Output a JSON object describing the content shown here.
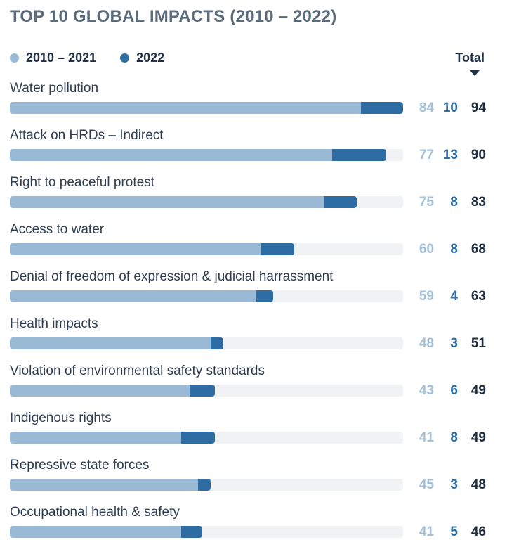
{
  "header": {
    "title": "TOP 10 GLOBAL IMPACTS (2010 – 2022)"
  },
  "legend": {
    "items": [
      {
        "label": "2010 – 2021",
        "color": "#9ab9d4"
      },
      {
        "label": "2022",
        "color": "#2e6da4"
      }
    ]
  },
  "total_header": {
    "label": "Total",
    "sort_direction": "descending"
  },
  "colors": {
    "bar_2010_2021": "#9ab9d4",
    "bar_2022": "#2e6da4",
    "track": "#f0f2f4",
    "title_text": "#5b6b7c",
    "label_text": "#2f3e51",
    "value_2010_2021_text": "#a3c0d9",
    "value_2022_text": "#2e6da4",
    "total_text": "#1e2c3e"
  },
  "chart_data": {
    "type": "bar",
    "orientation": "horizontal",
    "stacked": true,
    "title": "TOP 10 GLOBAL IMPACTS (2010 – 2022)",
    "categories": [
      "Water pollution",
      "Attack on HRDs – Indirect",
      "Right to peaceful protest",
      "Access to water",
      "Denial of freedom of expression & judicial harrassment",
      "Health impacts",
      "Violation of environmental safety standards",
      "Indigenous rights",
      "Repressive state forces",
      "Occupational health & safety"
    ],
    "series": [
      {
        "name": "2010 – 2021",
        "color": "#9ab9d4",
        "values": [
          84,
          77,
          75,
          60,
          59,
          48,
          43,
          41,
          45,
          41
        ]
      },
      {
        "name": "2022",
        "color": "#2e6da4",
        "values": [
          10,
          13,
          8,
          8,
          4,
          3,
          6,
          8,
          3,
          5
        ]
      }
    ],
    "totals": [
      94,
      90,
      83,
      68,
      63,
      51,
      49,
      49,
      48,
      46
    ],
    "xlim": [
      0,
      94
    ],
    "grid": false,
    "legend_position": "top-left",
    "sort": "total-descending"
  },
  "rows": [
    {
      "label": "Water pollution",
      "v1": "84",
      "v2": "10",
      "total": "94"
    },
    {
      "label": "Attack on HRDs – Indirect",
      "v1": "77",
      "v2": "13",
      "total": "90"
    },
    {
      "label": "Right to peaceful protest",
      "v1": "75",
      "v2": "8",
      "total": "83"
    },
    {
      "label": "Access to water",
      "v1": "60",
      "v2": "8",
      "total": "68"
    },
    {
      "label": "Denial of freedom of expression & judicial harrassment",
      "v1": "59",
      "v2": "4",
      "total": "63"
    },
    {
      "label": "Health impacts",
      "v1": "48",
      "v2": "3",
      "total": "51"
    },
    {
      "label": "Violation of environmental safety standards",
      "v1": "43",
      "v2": "6",
      "total": "49"
    },
    {
      "label": "Indigenous rights",
      "v1": "41",
      "v2": "8",
      "total": "49"
    },
    {
      "label": "Repressive state forces",
      "v1": "45",
      "v2": "3",
      "total": "48"
    },
    {
      "label": "Occupational health & safety",
      "v1": "41",
      "v2": "5",
      "total": "46"
    }
  ]
}
